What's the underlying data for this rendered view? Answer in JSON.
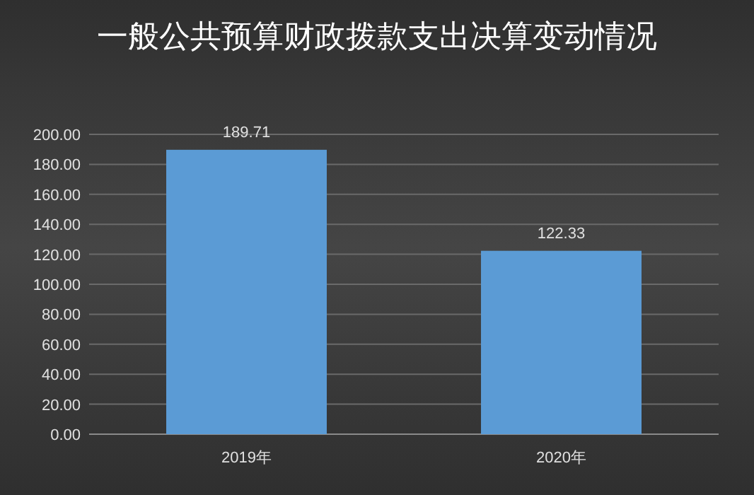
{
  "chart_data": {
    "type": "bar",
    "title": "一般公共预算财政拨款支出决算变动情况",
    "categories": [
      "2019年",
      "2020年"
    ],
    "values": [
      189.71,
      122.33
    ],
    "color": "#5b9bd5",
    "ylim": [
      0,
      200
    ],
    "yticks": [
      {
        "value": 0,
        "label": "0.00"
      },
      {
        "value": 20,
        "label": "20.00"
      },
      {
        "value": 40,
        "label": "40.00"
      },
      {
        "value": 60,
        "label": "60.00"
      },
      {
        "value": 80,
        "label": "80.00"
      },
      {
        "value": 100,
        "label": "100.00"
      },
      {
        "value": 120,
        "label": "120.00"
      },
      {
        "value": 140,
        "label": "140.00"
      },
      {
        "value": 160,
        "label": "160.00"
      },
      {
        "value": 180,
        "label": "180.00"
      },
      {
        "value": 200,
        "label": "200.00"
      }
    ],
    "grid": "y",
    "data_labels": true
  }
}
